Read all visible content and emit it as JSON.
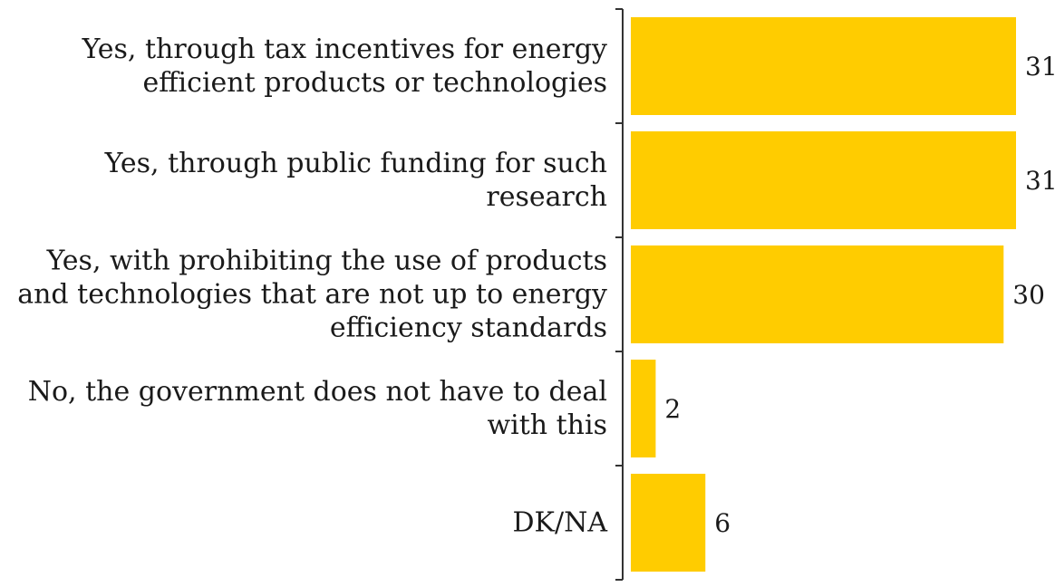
{
  "chart_data": {
    "type": "bar",
    "orientation": "horizontal",
    "categories": [
      "Yes, through tax incentives for energy\nefficient products or technologies",
      "Yes, through public funding for such\nresearch",
      "Yes, with prohibiting the use of products\nand technologies that are not up to energy\nefficiency standards",
      "No, the government does not have to deal\nwith this",
      "DK/NA"
    ],
    "values": [
      31,
      31,
      30,
      2,
      6
    ],
    "value_labels": [
      "31",
      "31",
      "30",
      "2",
      "6"
    ],
    "title": "",
    "xlabel": "",
    "ylabel": "",
    "xlim": [
      0,
      32
    ],
    "grid": false,
    "legend": "none",
    "bar_color": "#FFCC00",
    "axis_color": "#333333",
    "text_color": "#1a1a1a"
  }
}
